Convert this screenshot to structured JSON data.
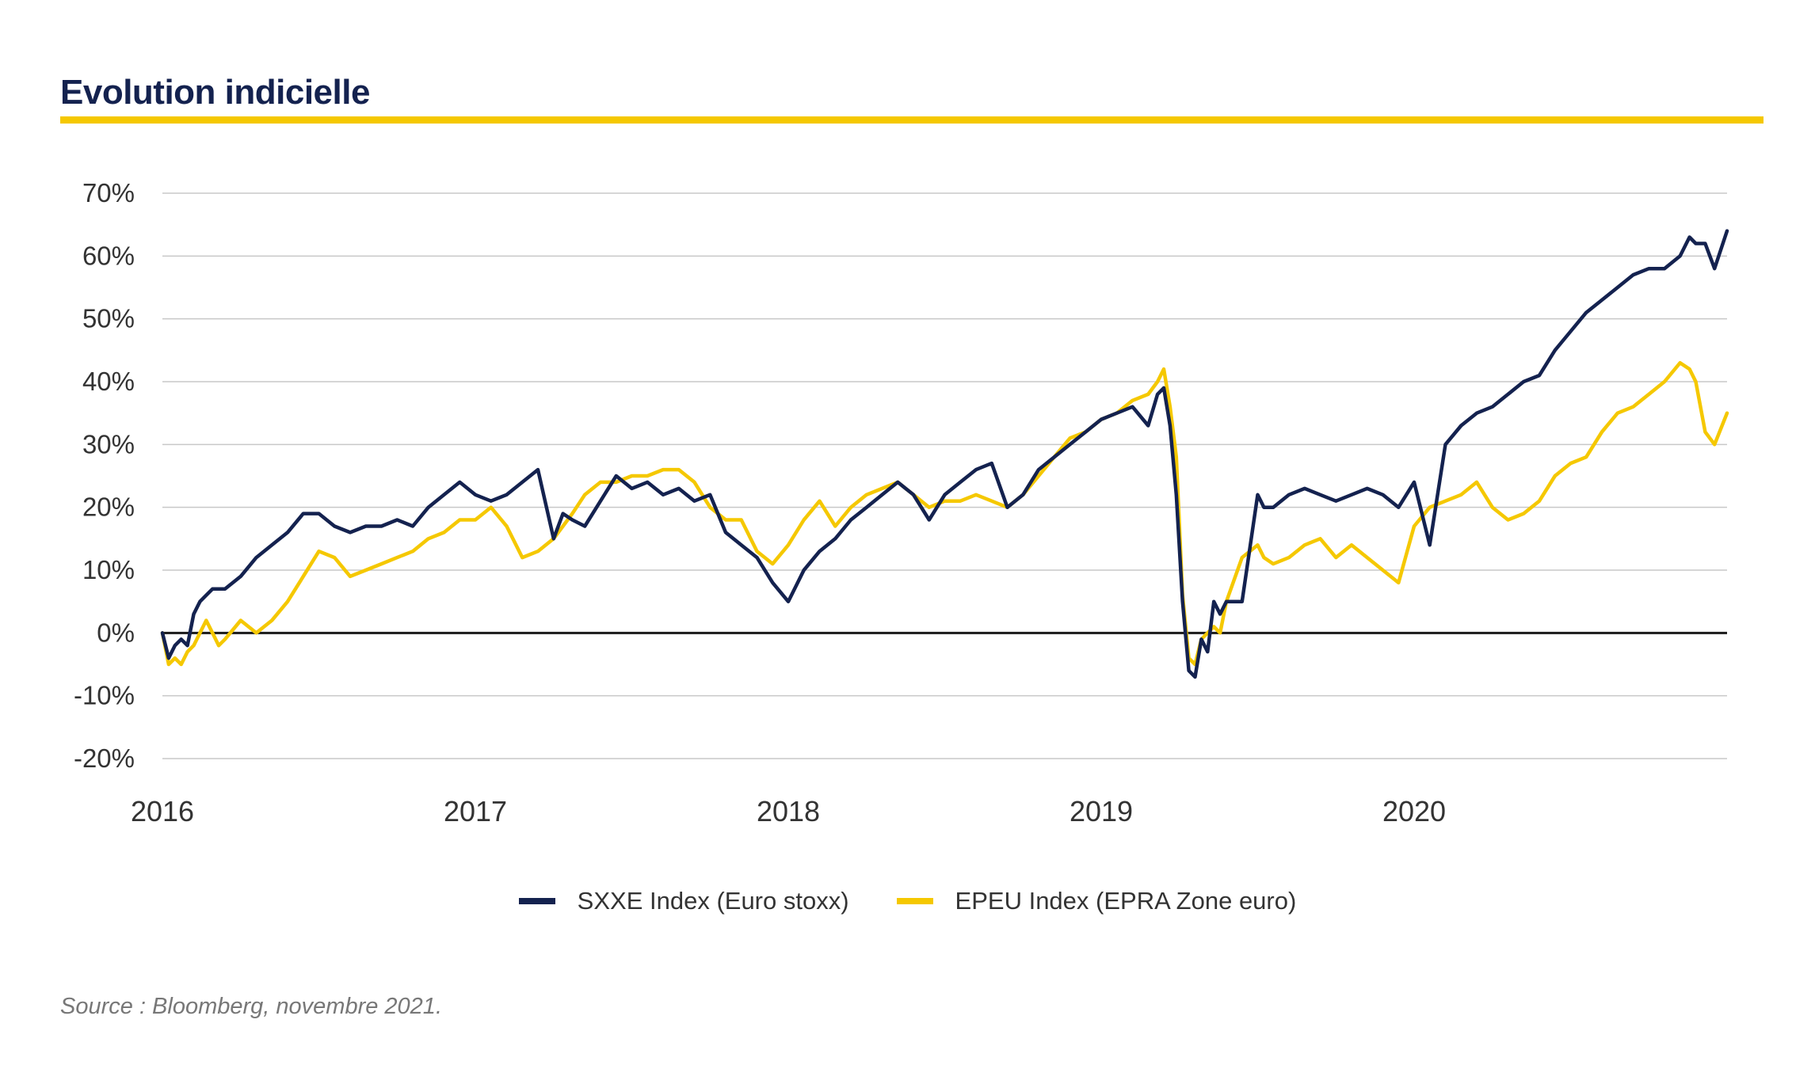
{
  "title": "Evolution indicielle",
  "source": "Source : Bloomberg, novembre 2021.",
  "colors": {
    "sxxe": "#14224f",
    "epeu": "#f5c800",
    "title_rule": "#f5c800",
    "grid": "#c8c8c8",
    "zero": "#1a1a1a"
  },
  "chart_data": {
    "type": "line",
    "ylim": [
      -20,
      70
    ],
    "xlim": [
      2016,
      2021
    ],
    "yticks": [
      70,
      60,
      50,
      40,
      30,
      20,
      10,
      0,
      -10,
      -20
    ],
    "ytick_labels": [
      "70%",
      "60%",
      "50%",
      "40%",
      "30%",
      "20%",
      "10%",
      "0%",
      "-10%",
      "-20%"
    ],
    "xticks": [
      2016,
      2017,
      2018,
      2019,
      2020
    ],
    "xtick_labels": [
      "2016",
      "2017",
      "2018",
      "2019",
      "2020"
    ],
    "grid": true,
    "legend": "bottom",
    "series": [
      {
        "name": "SXXE Index (Euro stoxx)",
        "color": "#14224f",
        "x": [
          2016.0,
          2016.02,
          2016.04,
          2016.06,
          2016.08,
          2016.1,
          2016.12,
          2016.14,
          2016.16,
          2016.18,
          2016.2,
          2016.25,
          2016.3,
          2016.35,
          2016.4,
          2016.45,
          2016.5,
          2016.55,
          2016.6,
          2016.65,
          2016.7,
          2016.75,
          2016.8,
          2016.85,
          2016.9,
          2016.95,
          2017.0,
          2017.05,
          2017.1,
          2017.15,
          2017.2,
          2017.25,
          2017.28,
          2017.31,
          2017.35,
          2017.4,
          2017.45,
          2017.5,
          2017.55,
          2017.6,
          2017.65,
          2017.7,
          2017.75,
          2017.8,
          2017.85,
          2017.9,
          2017.95,
          2018.0,
          2018.05,
          2018.1,
          2018.15,
          2018.2,
          2018.25,
          2018.3,
          2018.35,
          2018.4,
          2018.45,
          2018.5,
          2018.55,
          2018.6,
          2018.65,
          2018.7,
          2018.75,
          2018.8,
          2018.85,
          2018.9,
          2018.95,
          2019.0,
          2019.05,
          2019.1,
          2019.15,
          2019.18,
          2019.2,
          2019.22,
          2019.24,
          2019.26,
          2019.28,
          2019.3,
          2019.32,
          2019.34,
          2019.36,
          2019.38,
          2019.4,
          2019.45,
          2019.5,
          2019.52,
          2019.55,
          2019.6,
          2019.65,
          2019.7,
          2019.75,
          2019.8,
          2019.85,
          2019.9,
          2019.95,
          2020.0,
          2020.05,
          2020.1,
          2020.15,
          2020.2,
          2020.25,
          2020.3,
          2020.35,
          2020.4,
          2020.45,
          2020.5,
          2020.55,
          2020.6,
          2020.65,
          2020.7,
          2020.75,
          2020.8,
          2020.85,
          2020.88,
          2020.9,
          2020.93,
          2020.96,
          2021.0
        ],
        "y": [
          0,
          -4,
          -2,
          -1,
          -2,
          3,
          5,
          6,
          7,
          7,
          7,
          9,
          12,
          14,
          16,
          19,
          19,
          17,
          16,
          17,
          17,
          18,
          17,
          20,
          22,
          24,
          22,
          21,
          22,
          24,
          26,
          15,
          19,
          18,
          17,
          21,
          25,
          23,
          24,
          22,
          23,
          21,
          22,
          16,
          14,
          12,
          8,
          5,
          10,
          13,
          15,
          18,
          20,
          22,
          24,
          22,
          18,
          22,
          24,
          26,
          27,
          20,
          22,
          26,
          28,
          30,
          32,
          34,
          35,
          36,
          33,
          38,
          39,
          33,
          22,
          5,
          -6,
          -7,
          -1,
          -3,
          5,
          3,
          5,
          5,
          22,
          20,
          20,
          22,
          23,
          22,
          21,
          22,
          23,
          22,
          20,
          24,
          14,
          30,
          33,
          35,
          36,
          38,
          40,
          41,
          45,
          48,
          51,
          53,
          55,
          57,
          58,
          58,
          60,
          63,
          62,
          62,
          58,
          64
        ]
      },
      {
        "name": "EPEU Index (EPRA Zone euro)",
        "color": "#f5c800",
        "x": [
          2016.0,
          2016.02,
          2016.04,
          2016.06,
          2016.08,
          2016.1,
          2016.12,
          2016.14,
          2016.16,
          2016.18,
          2016.2,
          2016.25,
          2016.3,
          2016.35,
          2016.4,
          2016.45,
          2016.5,
          2016.55,
          2016.6,
          2016.65,
          2016.7,
          2016.75,
          2016.8,
          2016.85,
          2016.9,
          2016.95,
          2017.0,
          2017.05,
          2017.1,
          2017.15,
          2017.2,
          2017.25,
          2017.28,
          2017.31,
          2017.35,
          2017.4,
          2017.45,
          2017.5,
          2017.55,
          2017.6,
          2017.65,
          2017.7,
          2017.75,
          2017.8,
          2017.85,
          2017.9,
          2017.95,
          2018.0,
          2018.05,
          2018.1,
          2018.15,
          2018.2,
          2018.25,
          2018.3,
          2018.35,
          2018.4,
          2018.45,
          2018.5,
          2018.55,
          2018.6,
          2018.65,
          2018.7,
          2018.75,
          2018.8,
          2018.85,
          2018.9,
          2018.95,
          2019.0,
          2019.05,
          2019.1,
          2019.15,
          2019.18,
          2019.2,
          2019.22,
          2019.24,
          2019.26,
          2019.28,
          2019.3,
          2019.32,
          2019.34,
          2019.36,
          2019.38,
          2019.4,
          2019.45,
          2019.5,
          2019.52,
          2019.55,
          2019.6,
          2019.65,
          2019.7,
          2019.75,
          2019.8,
          2019.85,
          2019.9,
          2019.95,
          2020.0,
          2020.05,
          2020.1,
          2020.15,
          2020.2,
          2020.25,
          2020.3,
          2020.35,
          2020.4,
          2020.45,
          2020.5,
          2020.55,
          2020.6,
          2020.65,
          2020.7,
          2020.75,
          2020.8,
          2020.85,
          2020.88,
          2020.9,
          2020.93,
          2020.96,
          2021.0
        ],
        "y": [
          0,
          -5,
          -4,
          -5,
          -3,
          -2,
          0,
          2,
          0,
          -2,
          -1,
          2,
          0,
          2,
          5,
          9,
          13,
          12,
          9,
          10,
          11,
          12,
          13,
          15,
          16,
          18,
          18,
          20,
          17,
          12,
          13,
          15,
          17,
          19,
          22,
          24,
          24,
          25,
          25,
          26,
          26,
          24,
          20,
          18,
          18,
          13,
          11,
          14,
          18,
          21,
          17,
          20,
          22,
          23,
          24,
          22,
          20,
          21,
          21,
          22,
          21,
          20,
          22,
          25,
          28,
          31,
          32,
          34,
          35,
          37,
          38,
          40,
          42,
          36,
          28,
          6,
          -4,
          -5,
          -1,
          0,
          1,
          0,
          5,
          12,
          14,
          12,
          11,
          12,
          14,
          15,
          12,
          14,
          12,
          10,
          8,
          17,
          20,
          21,
          22,
          24,
          20,
          18,
          19,
          21,
          25,
          27,
          28,
          32,
          35,
          36,
          38,
          40,
          43,
          42,
          40,
          32,
          30,
          35
        ]
      }
    ]
  }
}
